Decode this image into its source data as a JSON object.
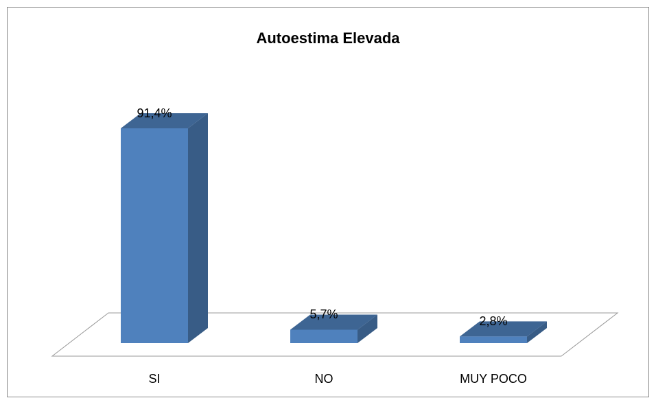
{
  "chart_data": {
    "type": "bar3d",
    "title": "Autoestima Elevada",
    "categories": [
      "SI",
      "NO",
      "MUY POCO"
    ],
    "values": [
      91.4,
      5.7,
      2.8
    ],
    "value_labels": [
      "91,4%",
      "5,7%",
      "2,8%"
    ],
    "color": "#4f81bd"
  }
}
